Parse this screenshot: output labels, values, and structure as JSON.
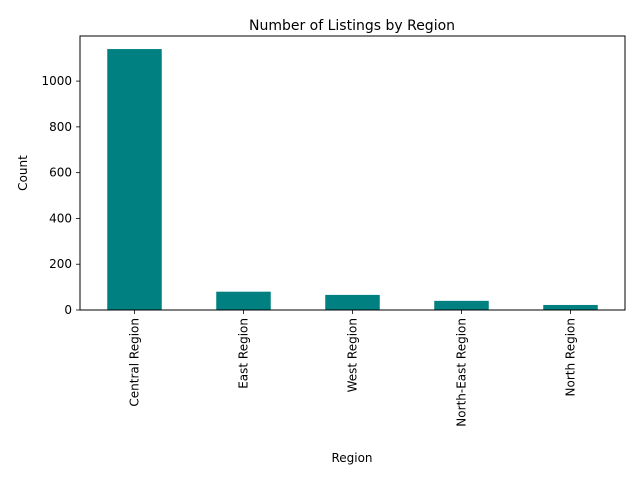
{
  "chart_data": {
    "type": "bar",
    "title": "Number of Listings by Region",
    "xlabel": "Region",
    "ylabel": "Count",
    "categories": [
      "Central Region",
      "East Region",
      "West Region",
      "North-East Region",
      "North Region"
    ],
    "values": [
      1140,
      80,
      66,
      40,
      22
    ],
    "ylim": [
      0,
      1197
    ],
    "yticks": [
      0,
      200,
      400,
      600,
      800,
      1000
    ],
    "bar_color": "#008080",
    "grid": false,
    "legend": "none"
  }
}
